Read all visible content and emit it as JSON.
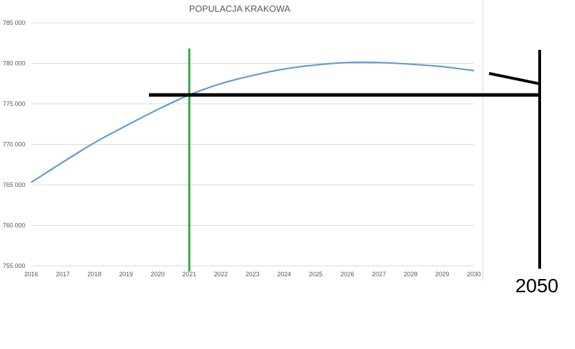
{
  "chart_data": {
    "type": "line",
    "title": "POPULACJA KRAKOWA",
    "xlabel": "",
    "ylabel": "",
    "x": [
      2016,
      2017,
      2018,
      2019,
      2020,
      2021,
      2022,
      2023,
      2024,
      2025,
      2026,
      2027,
      2028,
      2029,
      2030
    ],
    "x_tick_labels": [
      "2016",
      "2017",
      "2018",
      "2019",
      "2020",
      "2021",
      "2022",
      "2023",
      "2024",
      "2025",
      "2026",
      "2027",
      "2028",
      "2029",
      "2030"
    ],
    "y_tick_labels": [
      "755 000",
      "760 000",
      "765 000",
      "770 000",
      "775 000",
      "780 000",
      "785 000"
    ],
    "ylim": [
      755000,
      785000
    ],
    "grid": true,
    "series": [
      {
        "values": [
          765300,
          767800,
          770200,
          772300,
          774300,
          776100,
          777500,
          778500,
          779300,
          779800,
          780100,
          780100,
          779900,
          779600,
          779100
        ],
        "color": "#5b9bd5"
      }
    ],
    "annotations": {
      "hand_label": "2050",
      "vertical_marker_year": 2021,
      "marker_color": "#2ea84a",
      "ink_color": "#000000"
    }
  }
}
